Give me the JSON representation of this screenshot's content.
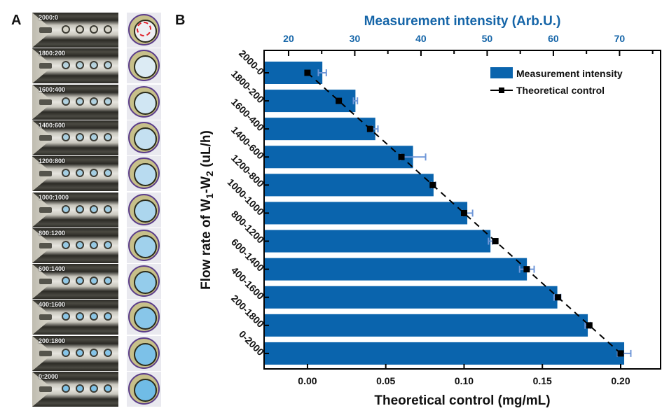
{
  "panels": {
    "a_label": "A",
    "b_label": "B"
  },
  "panel_a": {
    "strip_labels": [
      "2000:0",
      "1800:200",
      "1600:400",
      "1400:600",
      "1200:800",
      "1000:1000",
      "800:1200",
      "600:1400",
      "400:1600",
      "200:1800",
      "0:2000"
    ],
    "droplet_fill_levels": [
      0,
      0.1,
      0.2,
      0.3,
      0.4,
      0.5,
      0.6,
      0.7,
      0.8,
      0.9,
      1.0
    ],
    "colors": {
      "droplet_blue": "#7ec2e8",
      "droplet_clear": "#e8eef2",
      "ring_purple": "#5c3e8a",
      "marker_red": "#e0202a"
    }
  },
  "chart_data": {
    "type": "bar",
    "orientation": "horizontal",
    "title": "",
    "categories": [
      "2000-0",
      "1800-200",
      "1600-400",
      "1400-600",
      "1200-800",
      "1000-1000",
      "800-1200",
      "600-1400",
      "400-1600",
      "200-1800",
      "0-2000"
    ],
    "ylabel": "Flow rate of W1-W2 (uL/h)",
    "ylabel_parts": {
      "pre": "Flow rate of W",
      "sub1": "1",
      "mid": "-W",
      "sub2": "2",
      "post": " (uL/h)"
    },
    "top_axis": {
      "label": "Measurement intensity (Arb.U.)",
      "ticks": [
        20,
        30,
        40,
        50,
        60,
        70
      ],
      "range": [
        16.3,
        76.2
      ],
      "color": "#1565a8"
    },
    "bottom_axis": {
      "label": "Theoretical control (mg/mL)",
      "ticks": [
        "0.00",
        "0.05",
        "0.10",
        "0.15",
        "0.20"
      ],
      "tick_values": [
        0,
        0.05,
        0.1,
        0.15,
        0.2
      ],
      "range": [
        -0.0277,
        0.2255
      ]
    },
    "series": [
      {
        "name": "Measurement intensity",
        "kind": "bar",
        "axis": "top",
        "color": "#0a64ad",
        "values": [
          25.1,
          30.1,
          33.1,
          38.8,
          41.9,
          47.0,
          50.5,
          56.0,
          60.6,
          65.2,
          70.7
        ],
        "errors": [
          0.6,
          0.3,
          0.4,
          1.9,
          0.3,
          0.8,
          0.3,
          1.1,
          0.5,
          0.4,
          1.0
        ]
      },
      {
        "name": "Theoretical control",
        "kind": "line-marker",
        "axis": "bottom",
        "color": "#000000",
        "dash": true,
        "values": [
          0,
          0.02,
          0.04,
          0.06,
          0.08,
          0.1,
          0.12,
          0.14,
          0.16,
          0.18,
          0.2
        ]
      }
    ],
    "error_bar_color": "#6f97d8",
    "legend": {
      "position": "top-right",
      "entries": [
        "Measurement intensity",
        "Theoretical control"
      ]
    },
    "grid": false
  }
}
